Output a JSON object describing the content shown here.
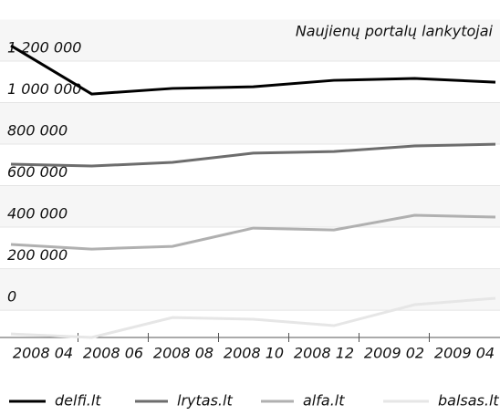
{
  "chart_data": {
    "type": "line",
    "title": "Naujienų portalų lankytojai",
    "categories": [
      "2008 04",
      "2008 06",
      "2008 08",
      "2008 10",
      "2008 12",
      "2009 02",
      "2009 04"
    ],
    "series": [
      {
        "name": "delfi.lt",
        "color": "#000000",
        "values": [
          1213000,
          980000,
          1007000,
          1015000,
          1046000,
          1055000,
          1037000
        ]
      },
      {
        "name": "lrytas.lt",
        "color": "#6d6d6d",
        "values": [
          642000,
          633000,
          651000,
          695000,
          703000,
          730000,
          738000
        ]
      },
      {
        "name": "alfa.lt",
        "color": "#b0b0b0",
        "values": [
          255000,
          233000,
          246000,
          334000,
          325000,
          396000,
          387000
        ]
      },
      {
        "name": "balsas.lt",
        "color": "#e6e6e6",
        "values": [
          -176000,
          -193000,
          -97000,
          -105000,
          -136000,
          -35000,
          -4000
        ]
      }
    ],
    "ylim": [
      -193000,
      1433000
    ],
    "yticks": [
      0,
      {
        "value": 200000,
        "label": "200 000"
      },
      {
        "value": 400000,
        "label": "400 000"
      },
      {
        "value": 600000,
        "label": "600 000"
      },
      {
        "value": 800000,
        "label": "800 000"
      },
      {
        "value": 1000000,
        "label": "1 000 000"
      },
      {
        "value": 1200000,
        "label": "1 200 000"
      }
    ],
    "grid": true,
    "legend": "bottom"
  }
}
